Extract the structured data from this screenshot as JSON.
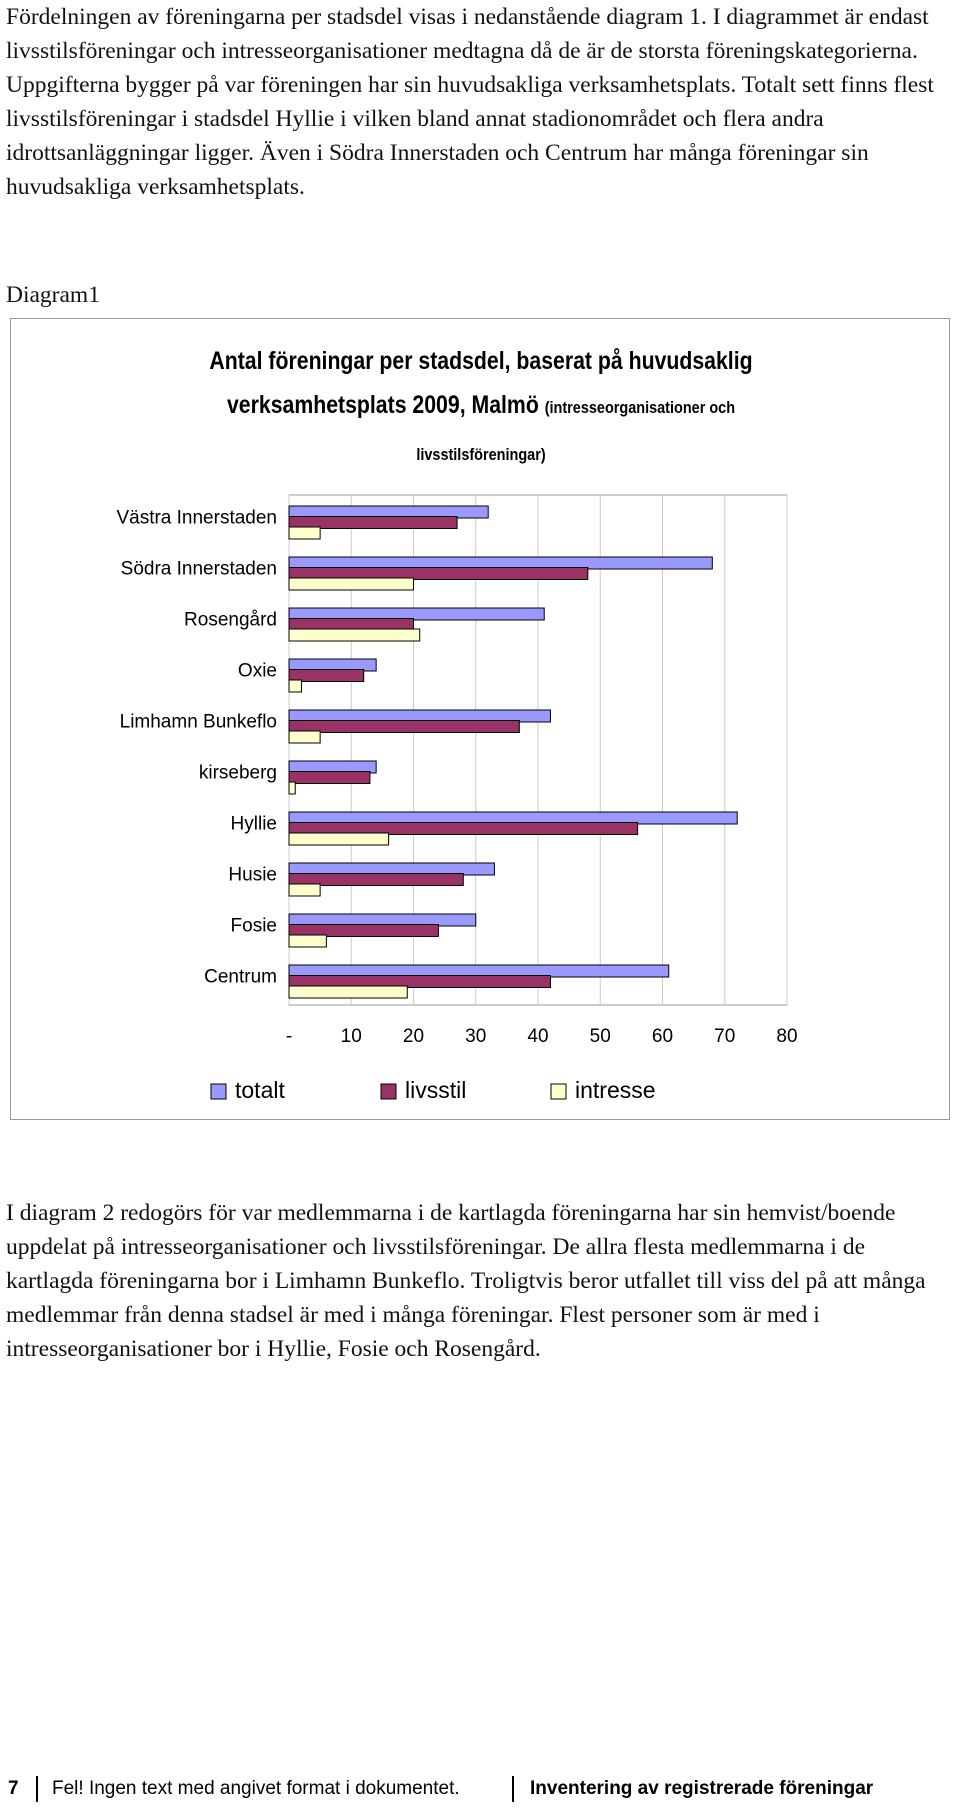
{
  "paragraphs": [
    "Fördelningen av föreningarna per stadsdel visas i nedanstående diagram 1. I diagrammet är endast livsstilsföreningar och intresseorganisationer medtagna då de är de storsta föreningskategorierna. Uppgifterna bygger på var föreningen har sin huvudsakliga verksamhetsplats. Totalt sett finns flest livsstilsföreningar i stadsdel Hyllie i vilken bland annat stadionområdet och flera andra idrottsanläggningar ligger. Även i Södra Innerstaden och Centrum har många föreningar sin huvudsakliga verksamhetsplats.",
    "I diagram 2 redogörs för var medlemmarna i de kartlagda föreningarna har sin hemvist/boende uppdelat på intresseorganisationer och livsstilsföreningar. De allra flesta medlemmarna i de kartlagda föreningarna bor i Limhamn Bunkeflo. Troligtvis beror utfallet till viss del på att många medlemmar från denna stadsel är med i många föreningar. Flest personer som är med i intresseorganisationer bor i Hyllie, Fosie och Rosengård."
  ],
  "diagram_label": "Diagram1",
  "chart_data": {
    "type": "hbar",
    "title": "Antal föreningar per stadsdel, baserat på huvudsaklig verksamhetsplats 2009, Malmö",
    "subtitle": "(intresseorganisationer och livsstilsföreningar)",
    "categories": [
      "Västra Innerstaden",
      "Södra Innerstaden",
      "Rosengård",
      "Oxie",
      "Limhamn Bunkeflo",
      "kirseberg",
      "Hyllie",
      "Husie",
      "Fosie",
      "Centrum"
    ],
    "series": [
      {
        "name": "totalt",
        "color": "#9999ff",
        "values": [
          32,
          68,
          41,
          14,
          42,
          14,
          72,
          33,
          30,
          61
        ]
      },
      {
        "name": "livsstil",
        "color": "#993366",
        "values": [
          27,
          48,
          20,
          12,
          37,
          13,
          56,
          28,
          24,
          42
        ]
      },
      {
        "name": "intresse",
        "color": "#ffffcc",
        "values": [
          5,
          20,
          21,
          2,
          5,
          1,
          16,
          5,
          6,
          19
        ]
      }
    ],
    "xlim": [
      0,
      80
    ],
    "xticks": [
      {
        "value": 0,
        "label": "-"
      },
      10,
      20,
      30,
      40,
      50,
      60,
      70,
      80
    ],
    "grid": true,
    "legend": "bottom"
  },
  "footer": {
    "page": "7",
    "left": "Fel! Ingen text med angivet format i dokumentet.",
    "right": "Inventering av registrerade föreningar"
  }
}
